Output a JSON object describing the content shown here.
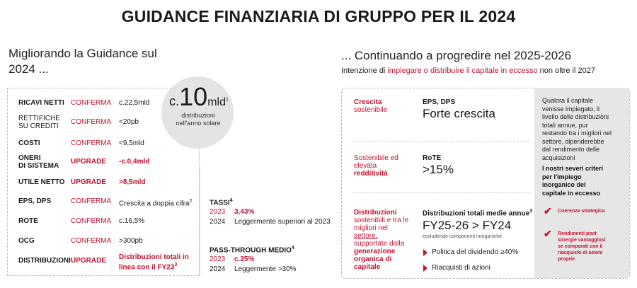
{
  "title": "GUIDANCE FINANZIARIA DI GRUPPO PER IL 2024",
  "left": {
    "heading_line1": "Migliorando la Guidance sul",
    "heading_line2": "2024 ...",
    "rows": [
      {
        "label": "RICAVI NETTI",
        "status": "CONFERMA",
        "value": "c.22,5mld"
      },
      {
        "label_line1": "RETTIFICHE",
        "label_line2": "SU CREDITI",
        "status": "CONFERMA",
        "value": "<20pb"
      },
      {
        "label": "COSTI",
        "status": "CONFERMA",
        "value": "<9,5mld"
      },
      {
        "label_line1": "ONERI",
        "label_line2": "DI SISTEMA",
        "status": "UPGRADE",
        "value": "-c.0,4mld"
      },
      {
        "label": "UTILE NETTO",
        "status": "UPGRADE",
        "value": ">8,5mld"
      },
      {
        "label": "EPS, DPS",
        "status": "CONFERMA",
        "value": "Crescita a doppia cifra",
        "value_sup": "2"
      },
      {
        "label": "ROTE",
        "status": "CONFERMA",
        "value": "c.16,5%"
      },
      {
        "label": "OCG",
        "status": "CONFERMA",
        "value": ">300pb"
      },
      {
        "label": "DISTRIBUZIONI",
        "status": "UPGRADE",
        "value_line1": "Distribuzioni totali in",
        "value_line2": "linea con il FY23",
        "value_sup": "3"
      }
    ],
    "circle": {
      "prefix": "c.",
      "number": "10",
      "unit": "mld",
      "sup": "1",
      "line1": "distribuzioni",
      "line2": "nell'anno solare"
    },
    "tassi": {
      "label": "TASSI",
      "sup": "4",
      "year1": "2023",
      "value1": "3,43%",
      "year2": "2024",
      "value2": "Leggermente superiori al 2023"
    },
    "pass": {
      "label": "PASS-THROUGH MEDIO",
      "sup": "4",
      "year1": "2023",
      "value1": "c.25%",
      "year2": "2024",
      "value2": "Leggermente >30%"
    }
  },
  "right": {
    "heading": "... Continuando a progredire nel 2025-2026",
    "sub_pre": "Intenzione di ",
    "sub_red": "impiegare o distribuire il capitale in eccesso",
    "sub_post": " non oltre il 2027",
    "blocks": [
      {
        "cat_red": "Crescita",
        "cat_grey": "sostenibile",
        "metric": "EPS, DPS",
        "big": "Forte crescita"
      },
      {
        "cat_grey1": "Sostenibile ed",
        "cat_grey2": "elevata",
        "cat_red": "redditività",
        "metric": "RoTE",
        "big": ">15%"
      },
      {
        "cat_red": "Distribuzioni",
        "cat_grey1": "sostenibili e tra le",
        "cat_grey2": "migliori nel",
        "cat_grey3": "settore,",
        "cat_grey4": "supportate dalla",
        "cat_red2": "generazione",
        "cat_red3": "organica di",
        "cat_red4": "capitale",
        "metric": "Distribuzioni totali medie annue",
        "metric_sup": "3",
        "big": "FY25-26 > FY24",
        "note": "escludendo componenti inorganiche",
        "bullets": [
          "Politica del dividendo ≥40%",
          "Riacquisti di azioni"
        ]
      }
    ],
    "panel": {
      "text_lines": [
        "Qualora il capitale",
        "venisse impiegato, il",
        "livello delle distribuzioni",
        "totali annue, pur",
        "restando tra i migliori nel",
        "settore, dipenderebbe",
        "dal rendimento delle",
        "acquisizioni"
      ],
      "bold_lines": [
        "I nostri severi criteri",
        "per l'impiego",
        "inorganico del",
        "capitale in eccesso"
      ],
      "check1": "Coerenza strategica",
      "check2_lines": [
        "Rendimenti post",
        "sinergie vantaggiosi",
        "se comparati con il",
        "riacquisto di azioni",
        "proprie"
      ]
    }
  }
}
